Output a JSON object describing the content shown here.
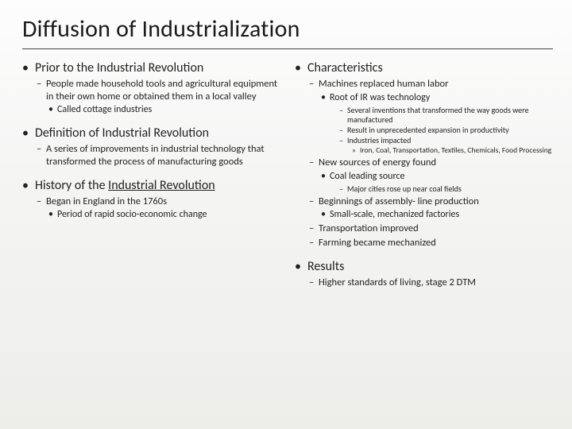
{
  "title": "Diffusion of Industrialization",
  "left": {
    "h1": "Prior to the Industrial Revolution",
    "h1_a": "People made household tools and agricultural equipment in their own home or obtained them in a local valley",
    "h1_a_i": "Called cottage industries",
    "h2": "Definition of Industrial Revolution",
    "h2_a": "A series of improvements in industrial technology that transformed the process of manufacturing goods",
    "h3_pre": "History of the ",
    "h3_link": "Industrial Revolution",
    "h3_a": "Began in England in the 1760s",
    "h3_a_i": "Period of rapid socio-economic change"
  },
  "right": {
    "h1": "Characteristics",
    "c1": "Machines replaced human labor",
    "c1_a": "Root of IR was technology",
    "c1_a_i": "Several inventions that transformed the way goods were manufactured",
    "c1_a_ii": "Result in unprecedented expansion in productivity",
    "c1_a_iii": "Industries impacted",
    "c1_a_iii_x": "Iron, Coal, Transportation, Textiles, Chemicals, Food Processing",
    "c2": "New sources of energy found",
    "c2_a": "Coal leading source",
    "c2_a_i": "Major cities rose up near coal fields",
    "c3": "Beginnings of assembly- line production",
    "c3_a": "Small-scale, mechanized factories",
    "c4": "Transportation improved",
    "c5": "Farming became mechanized",
    "h2": "Results",
    "r1": "Higher standards of living, stage 2 DTM"
  }
}
